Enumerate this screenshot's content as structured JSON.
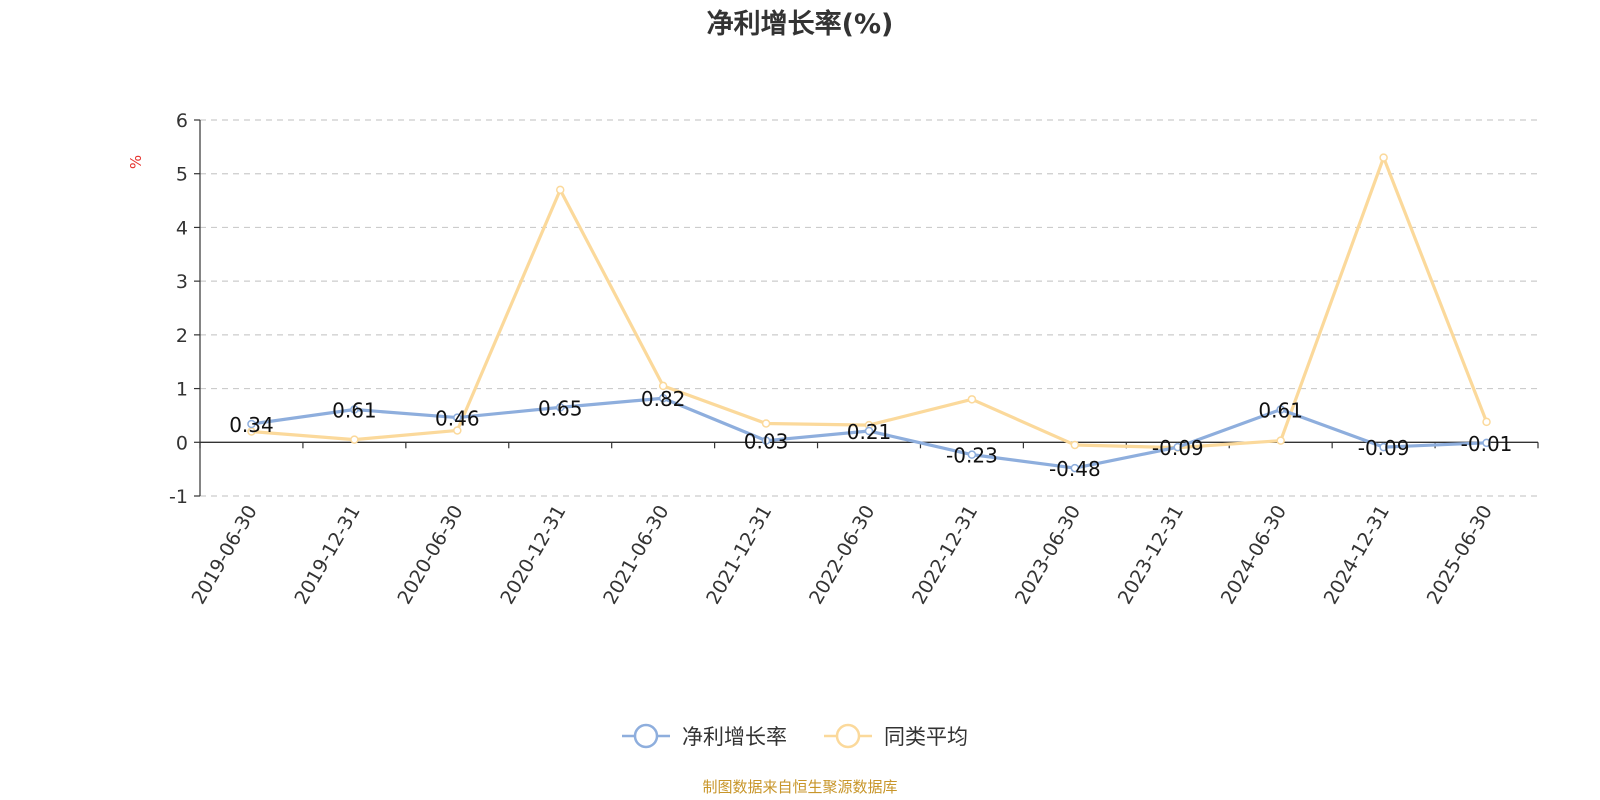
{
  "chart_data": {
    "type": "line",
    "title": "净利增长率(%)",
    "ylabel": "%",
    "xlabel": "",
    "ylim": [
      -1,
      6
    ],
    "yticks": [
      -1,
      0,
      1,
      2,
      3,
      4,
      5,
      6
    ],
    "grid": true,
    "legend_position": "bottom-center",
    "categories": [
      "2019-06-30",
      "2019-12-31",
      "2020-06-30",
      "2020-12-31",
      "2021-06-30",
      "2021-12-31",
      "2022-06-30",
      "2022-12-31",
      "2023-06-30",
      "2023-12-31",
      "2024-06-30",
      "2024-12-31",
      "2025-06-30"
    ],
    "series": [
      {
        "name": "净利增长率",
        "color": "#8eaedd",
        "values": [
          0.34,
          0.61,
          0.46,
          0.65,
          0.82,
          0.03,
          0.21,
          -0.23,
          -0.48,
          -0.09,
          0.61,
          -0.09,
          -0.01
        ],
        "labels": [
          "0.34",
          "0.61",
          "0.46",
          "0.65",
          "0.82",
          "0.03",
          "0.21",
          "-0.23",
          "-0.48",
          "-0.09",
          "0.61",
          "-0.09",
          "-0.01"
        ]
      },
      {
        "name": "同类平均",
        "color": "#fbd99b",
        "values": [
          0.2,
          0.05,
          0.22,
          4.7,
          1.05,
          0.35,
          0.32,
          0.8,
          -0.05,
          -0.1,
          0.03,
          5.3,
          0.38
        ]
      }
    ],
    "source": "制图数据来自恒生聚源数据库"
  }
}
